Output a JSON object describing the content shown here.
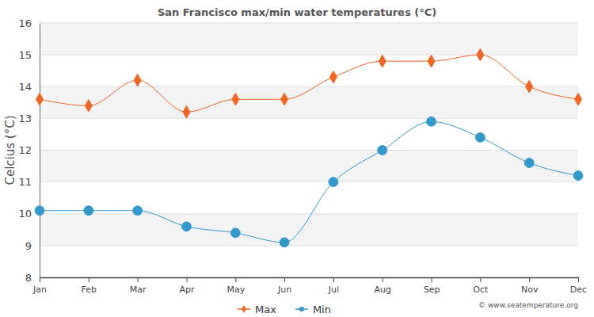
{
  "chart_data": {
    "type": "line",
    "title": "San Francisco max/min water temperatures (°C)",
    "y_label": "Celcius (°C)",
    "annotations": [
      "© www.seatemperature.org"
    ],
    "categories": [
      "Jan",
      "Feb",
      "Mar",
      "Apr",
      "May",
      "Jun",
      "Jul",
      "Aug",
      "Sep",
      "Oct",
      "Nov",
      "Dec"
    ],
    "series": [
      {
        "name": "Max",
        "color": "#f26522",
        "marker": "diamond",
        "line_style": "solid",
        "values": [
          13.6,
          13.4,
          14.2,
          13.2,
          13.6,
          13.6,
          14.3,
          14.8,
          14.8,
          15.0,
          14.0,
          13.6
        ]
      },
      {
        "name": "Min",
        "color": "#3399cc",
        "marker": "circle",
        "line_style": "solid",
        "values": [
          10.1,
          10.1,
          10.1,
          9.6,
          9.4,
          9.1,
          11.0,
          12.0,
          12.9,
          12.4,
          11.6,
          11.2
        ]
      }
    ],
    "ylim": [
      8,
      16
    ],
    "yticks": [
      8,
      9,
      10,
      11,
      12,
      13,
      14,
      15,
      16
    ],
    "grid": true,
    "legend": "bottom"
  }
}
